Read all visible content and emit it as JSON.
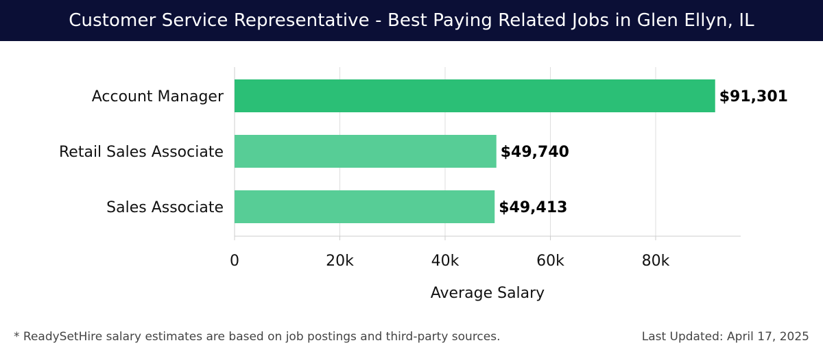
{
  "header": {
    "title": "Customer Service Representative - Best Paying Related Jobs in Glen Ellyn, IL"
  },
  "colors": {
    "header_background": "#0b0f36",
    "bar_top": "#2bbf76",
    "bar_other": "#57cd96",
    "grid": "#dddddd",
    "axis": "#cccccc",
    "text": "#111111",
    "footer_text": "#444444"
  },
  "chart_data": {
    "type": "bar",
    "orientation": "horizontal",
    "categories": [
      "Account Manager",
      "Retail Sales Associate",
      "Sales Associate"
    ],
    "values": [
      91301,
      49740,
      49413
    ],
    "data_labels": [
      "$91,301",
      "$49,740",
      "$49,413"
    ],
    "xlabel": "Average Salary",
    "ylabel": "",
    "xlim": [
      0,
      96000
    ],
    "x_ticks": [
      0,
      20000,
      40000,
      60000,
      80000
    ],
    "x_tick_labels": [
      "0",
      "20k",
      "40k",
      "60k",
      "80k"
    ],
    "grid": "vertical",
    "legend": "none"
  },
  "footer": {
    "note": "* ReadySetHire salary estimates are based on job postings and third-party sources.",
    "updated": "Last Updated: April 17, 2025"
  }
}
